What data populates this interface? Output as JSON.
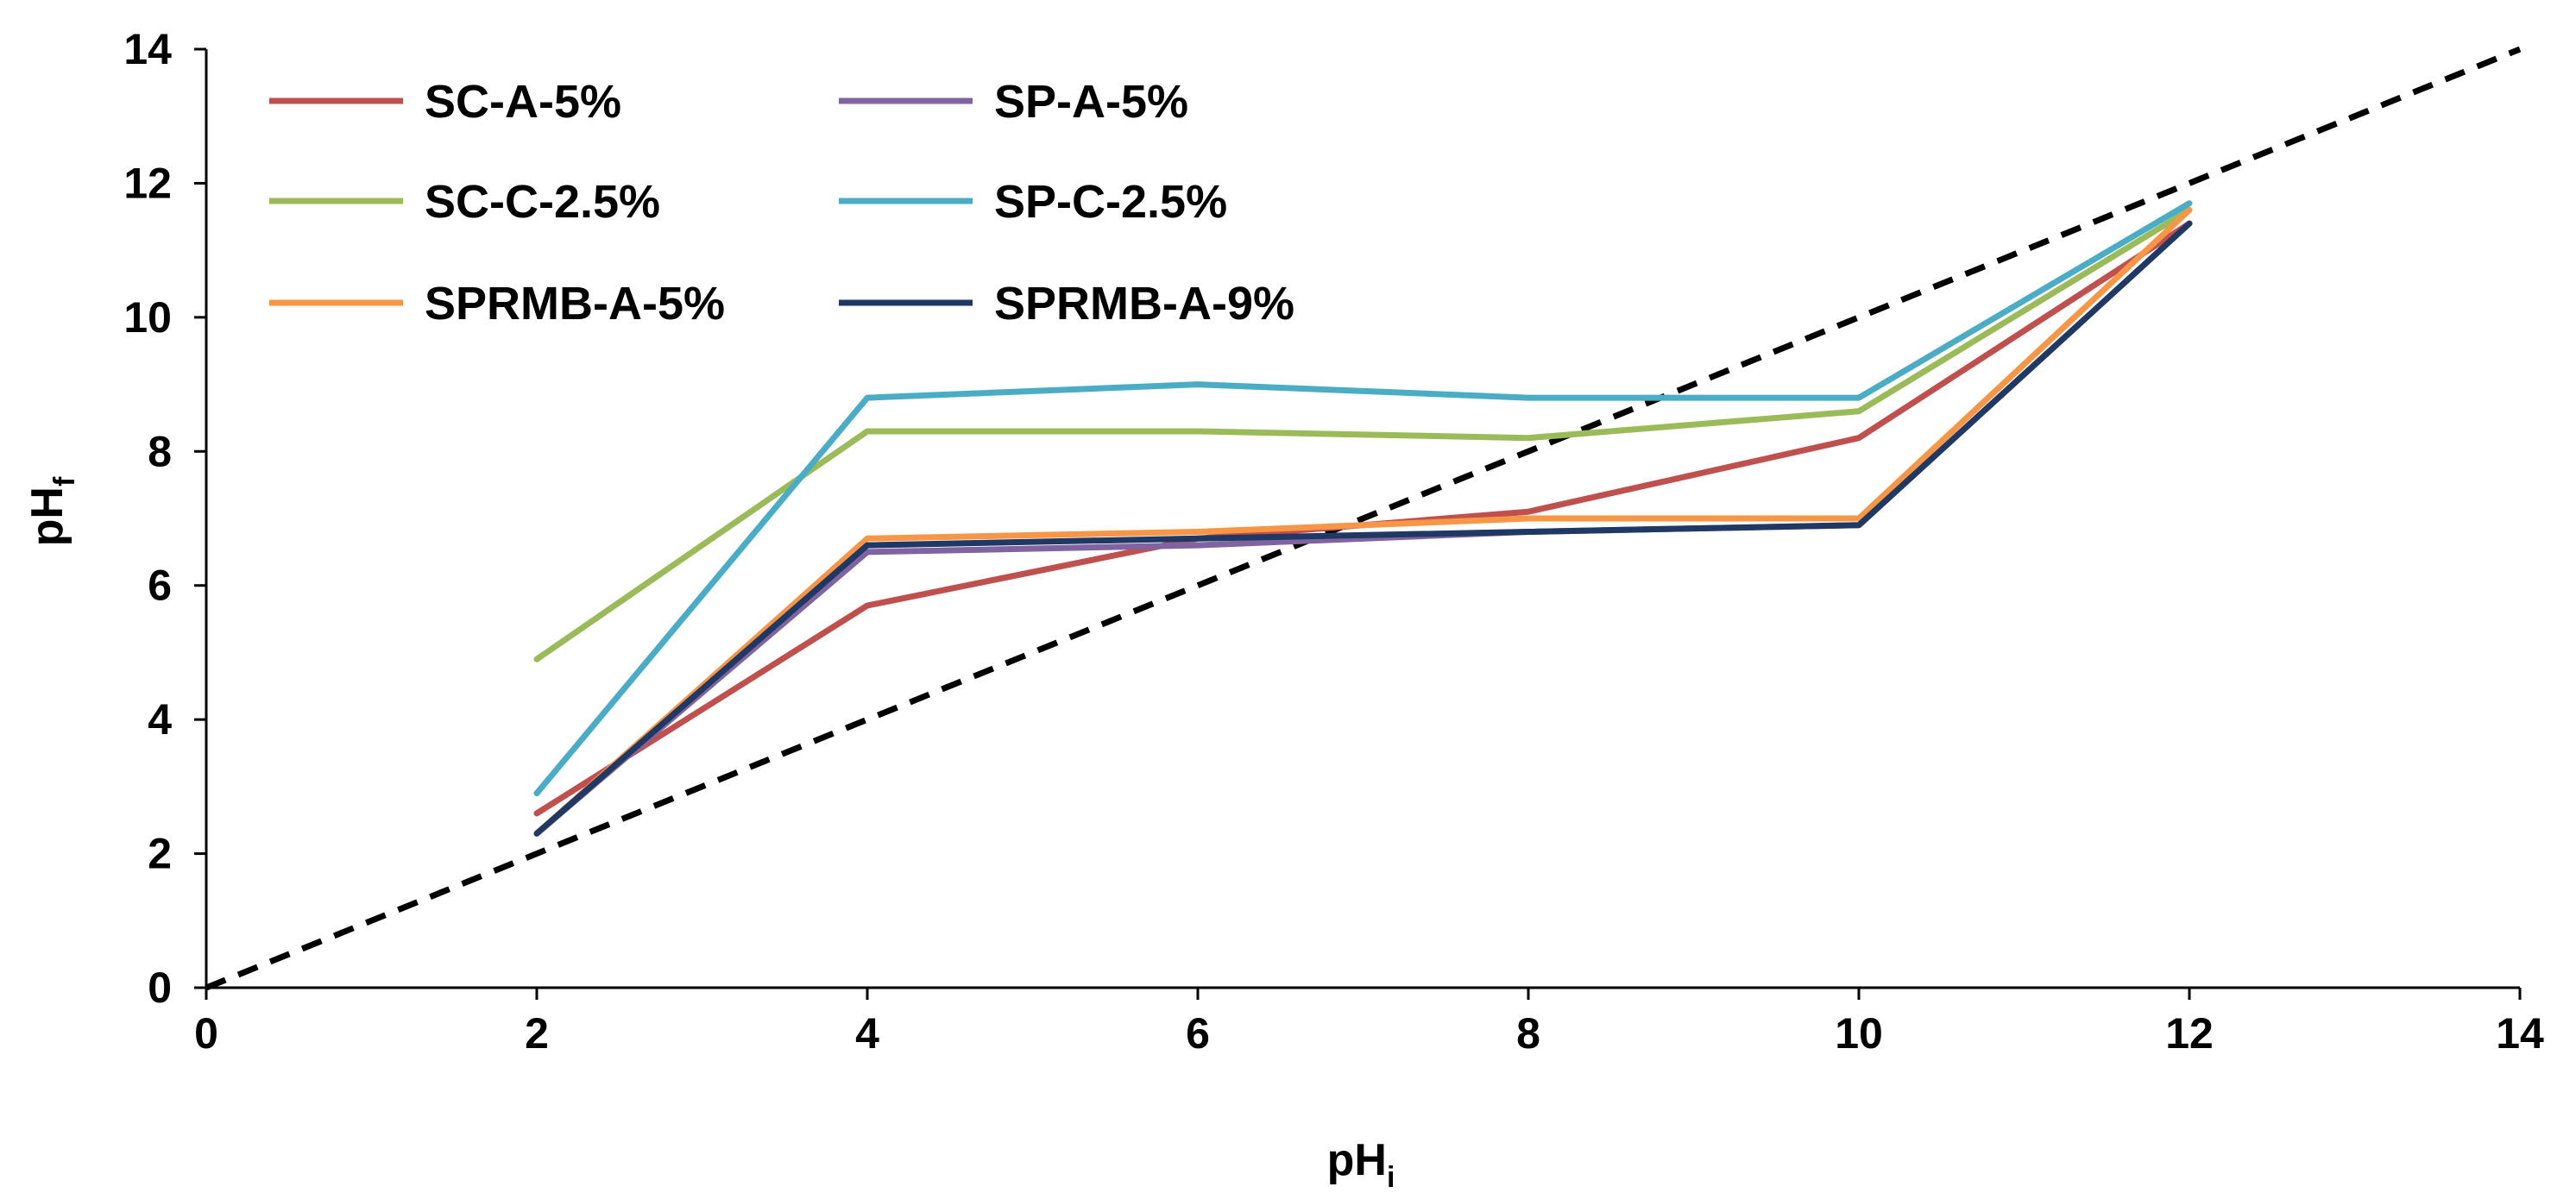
{
  "chart_data": {
    "type": "line",
    "title": "",
    "xlabel": "pH",
    "xlabel_subscript": "i",
    "ylabel": "pH",
    "ylabel_subscript": "f",
    "xlim": [
      0,
      14
    ],
    "ylim": [
      0,
      14
    ],
    "xticks": [
      "0",
      "2",
      "4",
      "6",
      "8",
      "10",
      "12",
      "14"
    ],
    "yticks": [
      "0",
      "2",
      "4",
      "6",
      "8",
      "10",
      "12",
      "14"
    ],
    "x": [
      2,
      4,
      6,
      8,
      10,
      12
    ],
    "legend_position": "top-left",
    "series": [
      {
        "name": "SC-A-5%",
        "color": "#c0504d",
        "values": [
          2.6,
          5.7,
          6.7,
          7.1,
          8.2,
          11.4
        ]
      },
      {
        "name": "SP-A-5%",
        "color": "#8064a2",
        "values": [
          2.3,
          6.5,
          6.6,
          6.8,
          6.9,
          11.4
        ]
      },
      {
        "name": "SC-C-2.5%",
        "color": "#9bbb59",
        "values": [
          4.9,
          8.3,
          8.3,
          8.2,
          8.6,
          11.6
        ]
      },
      {
        "name": "SP-C-2.5%",
        "color": "#4bacc6",
        "values": [
          2.9,
          8.8,
          9.0,
          8.8,
          8.8,
          11.7
        ]
      },
      {
        "name": "SPRMB-A-5%",
        "color": "#f79646",
        "values": [
          2.3,
          6.7,
          6.8,
          7.0,
          7.0,
          11.6
        ]
      },
      {
        "name": "SPRMB-A-9%",
        "color": "#1f3864",
        "values": [
          2.3,
          6.6,
          6.7,
          6.8,
          6.9,
          11.4
        ]
      }
    ],
    "reference_line": {
      "name": "pHf = pHi",
      "style": "dashed",
      "color": "#000000",
      "x": [
        0,
        14
      ],
      "y": [
        0,
        14
      ]
    }
  }
}
